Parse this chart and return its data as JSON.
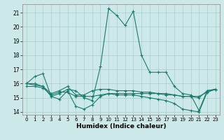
{
  "xlabel": "Humidex (Indice chaleur)",
  "xlim": [
    -0.5,
    23.5
  ],
  "ylim": [
    13.8,
    21.6
  ],
  "yticks": [
    14,
    15,
    16,
    17,
    18,
    19,
    20,
    21
  ],
  "xticks": [
    0,
    1,
    2,
    3,
    4,
    5,
    6,
    7,
    8,
    9,
    10,
    11,
    12,
    13,
    14,
    15,
    16,
    17,
    18,
    19,
    20,
    21,
    22,
    23
  ],
  "bg_color": "#cce8e8",
  "line_color": "#1a7a6e",
  "grid_color": "#aacccc",
  "lines": [
    [
      16.0,
      16.5,
      16.7,
      15.1,
      15.3,
      15.6,
      15.5,
      15.0,
      14.8,
      17.2,
      21.3,
      20.8,
      20.1,
      21.1,
      18.0,
      16.8,
      16.8,
      16.8,
      15.8,
      15.3,
      15.2,
      14.1,
      15.5,
      15.6
    ],
    [
      16.0,
      16.0,
      15.8,
      15.1,
      14.9,
      15.5,
      14.4,
      14.2,
      14.5,
      15.1,
      15.3,
      15.2,
      15.2,
      15.2,
      15.1,
      15.0,
      14.9,
      14.8,
      14.6,
      14.2,
      14.1,
      14.0,
      15.4,
      15.6
    ],
    [
      16.0,
      15.9,
      15.8,
      15.3,
      15.5,
      15.8,
      15.2,
      15.2,
      15.5,
      15.6,
      15.6,
      15.5,
      15.5,
      15.5,
      15.4,
      15.4,
      15.3,
      15.3,
      15.2,
      15.1,
      15.1,
      15.0,
      15.5,
      15.6
    ],
    [
      15.8,
      15.8,
      15.7,
      15.2,
      15.4,
      15.4,
      15.1,
      15.1,
      15.1,
      15.2,
      15.3,
      15.3,
      15.3,
      15.3,
      15.3,
      15.3,
      15.3,
      15.2,
      15.2,
      15.1,
      15.1,
      15.1,
      15.4,
      15.6
    ]
  ]
}
